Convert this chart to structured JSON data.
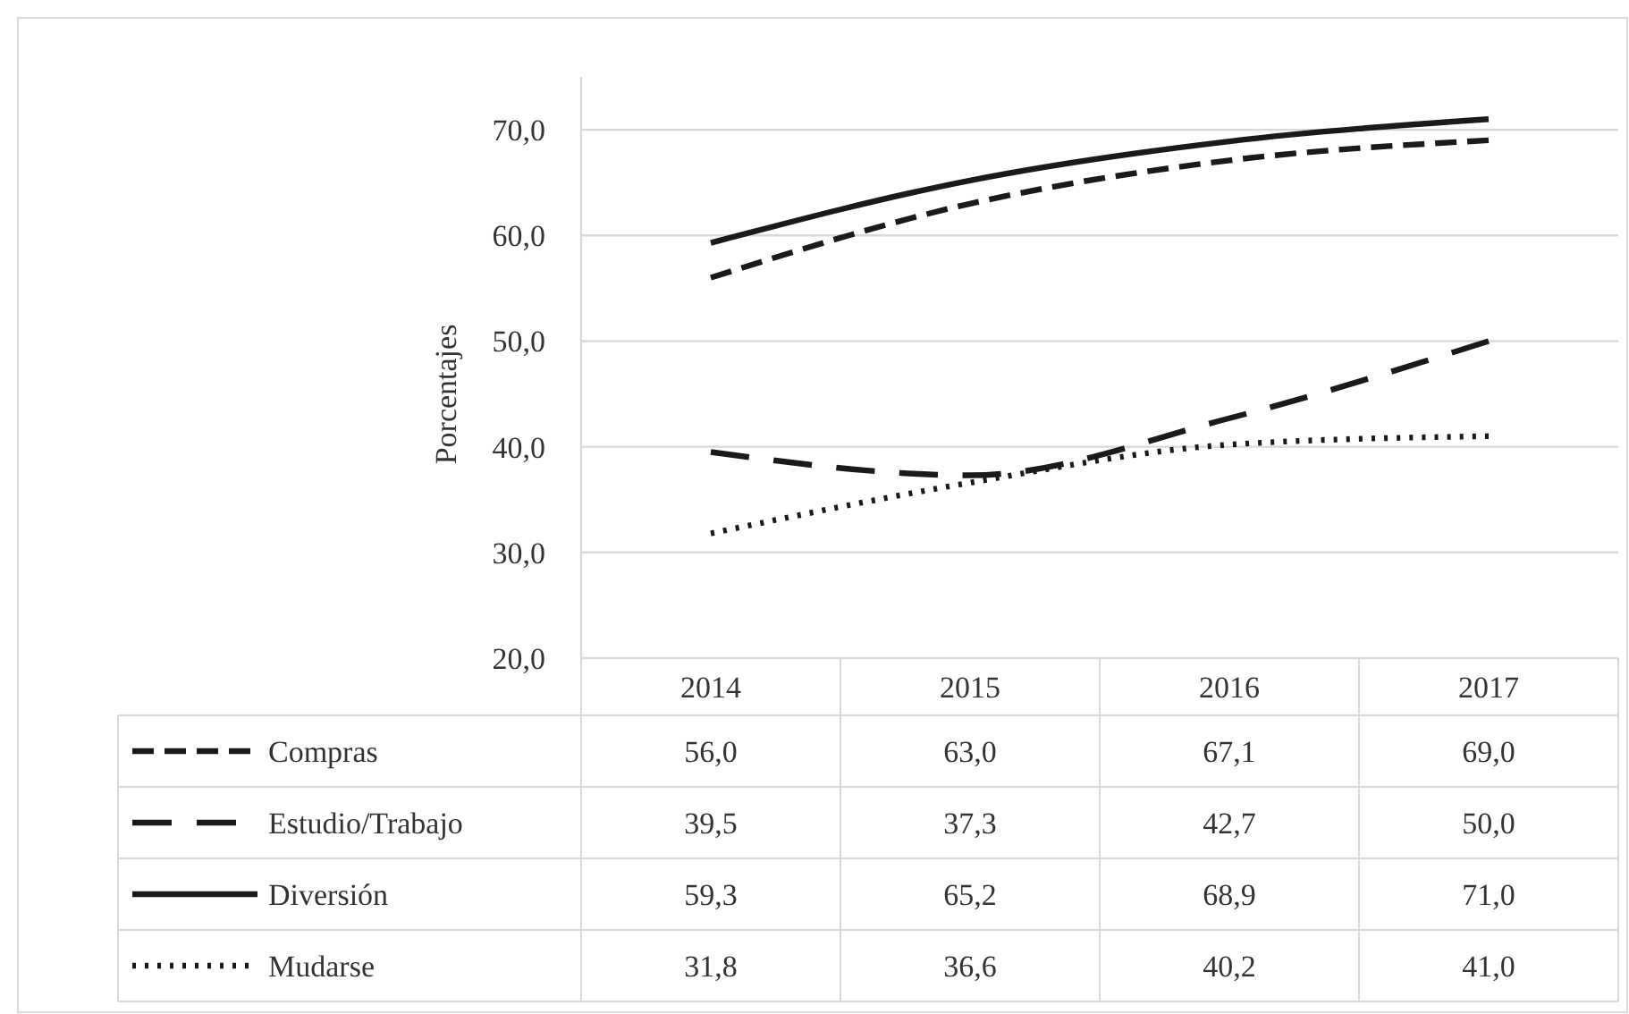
{
  "chart_data": {
    "type": "line",
    "ylabel": "Porcentajes",
    "categories": [
      "2014",
      "2015",
      "2016",
      "2017"
    ],
    "series": [
      {
        "name": "Compras",
        "color": "#1a1a1a",
        "line_style": "dashed",
        "values": [
          56.0,
          63.0,
          67.1,
          69.0
        ],
        "value_labels": [
          "56,0",
          "63,0",
          "67,1",
          "69,0"
        ]
      },
      {
        "name": "Estudio/Trabajo",
        "color": "#1a1a1a",
        "line_style": "longdash",
        "values": [
          39.5,
          37.3,
          42.7,
          50.0
        ],
        "value_labels": [
          "39,5",
          "37,3",
          "42,7",
          "50,0"
        ]
      },
      {
        "name": "Diversión",
        "color": "#1a1a1a",
        "line_style": "solid",
        "values": [
          59.3,
          65.2,
          68.9,
          71.0
        ],
        "value_labels": [
          "59,3",
          "65,2",
          "68,9",
          "71,0"
        ]
      },
      {
        "name": "Mudarse",
        "color": "#1a1a1a",
        "line_style": "dotted",
        "values": [
          31.8,
          36.6,
          40.2,
          41.0
        ],
        "value_labels": [
          "31,8",
          "36,6",
          "40,2",
          "41,0"
        ]
      }
    ],
    "ylim": [
      20,
      75
    ],
    "yticks": [
      {
        "value": 20,
        "label": "20,0"
      },
      {
        "value": 30,
        "label": "30,0"
      },
      {
        "value": 40,
        "label": "40,0"
      },
      {
        "value": 50,
        "label": "50,0"
      },
      {
        "value": 60,
        "label": "60,0"
      },
      {
        "value": 70,
        "label": "70,0"
      }
    ],
    "grid": "y",
    "legend": "bottom",
    "marker": "none"
  }
}
